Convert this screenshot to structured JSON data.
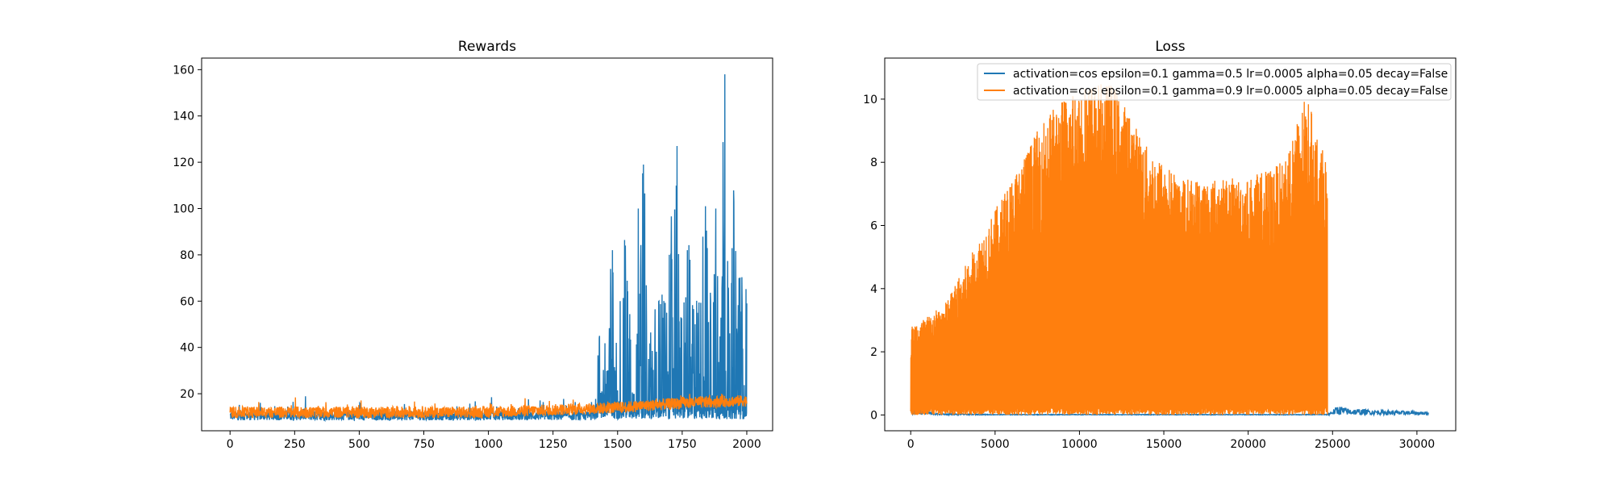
{
  "chart_data": [
    {
      "type": "line",
      "title": "Rewards",
      "xlabel": "",
      "ylabel": "",
      "xlim": [
        -110,
        2100
      ],
      "ylim": [
        4,
        165
      ],
      "xticks": [
        0,
        250,
        500,
        750,
        1000,
        1250,
        1500,
        1750,
        2000
      ],
      "yticks": [
        20,
        40,
        60,
        80,
        100,
        120,
        140,
        160
      ],
      "grid": false,
      "legend": "none",
      "series": [
        {
          "color": "#1f77b4",
          "description_points": [
            [
              0,
              10
            ],
            [
              100,
              9
            ],
            [
              250,
              10
            ],
            [
              400,
              9
            ],
            [
              500,
              11
            ],
            [
              750,
              10
            ],
            [
              1000,
              10
            ],
            [
              1250,
              11
            ],
            [
              1400,
              12
            ],
            [
              1430,
              45
            ],
            [
              1440,
              20
            ],
            [
              1480,
              82
            ],
            [
              1490,
              30
            ],
            [
              1510,
              60
            ],
            [
              1530,
              84
            ],
            [
              1560,
              20
            ],
            [
              1580,
              100
            ],
            [
              1600,
              119
            ],
            [
              1620,
              35
            ],
            [
              1660,
              60
            ],
            [
              1690,
              55
            ],
            [
              1700,
              80
            ],
            [
              1730,
              127
            ],
            [
              1740,
              40
            ],
            [
              1770,
              82
            ],
            [
              1800,
              50
            ],
            [
              1840,
              101
            ],
            [
              1860,
              60
            ],
            [
              1880,
              100
            ],
            [
              1915,
              158
            ],
            [
              1930,
              50
            ],
            [
              1950,
              103
            ],
            [
              1970,
              70
            ],
            [
              2000,
              59
            ]
          ]
        },
        {
          "color": "#ff7f0e",
          "description_points": [
            [
              0,
              12
            ],
            [
              500,
              12
            ],
            [
              1000,
              12
            ],
            [
              1250,
              13
            ],
            [
              1500,
              14
            ],
            [
              1750,
              16
            ],
            [
              2000,
              17
            ]
          ]
        }
      ]
    },
    {
      "type": "line",
      "title": "Loss",
      "xlabel": "",
      "ylabel": "",
      "xlim": [
        -1540,
        32300
      ],
      "ylim": [
        -0.5,
        11.3
      ],
      "xticks": [
        0,
        5000,
        10000,
        15000,
        20000,
        25000,
        30000
      ],
      "yticks": [
        0,
        2,
        4,
        6,
        8,
        10
      ],
      "grid": false,
      "legend": "top-right",
      "series": [
        {
          "name": "activation=cos epsilon=0.1 gamma=0.5 lr=0.0005 alpha=0.05 decay=False",
          "color": "#1f77b4",
          "total_steps": 30700,
          "envelope": [
            [
              0,
              0.3
            ],
            [
              1500,
              0.05
            ],
            [
              5000,
              0.02
            ],
            [
              24700,
              0.02
            ],
            [
              25300,
              0.3
            ],
            [
              26000,
              0.2
            ],
            [
              30700,
              0.1
            ]
          ]
        },
        {
          "name": "activation=cos epsilon=0.1 gamma=0.9 lr=0.0005 alpha=0.05 decay=False",
          "color": "#ff7f0e",
          "total_steps": 24700,
          "envelope": [
            [
              0,
              2.8
            ],
            [
              2000,
              3.5
            ],
            [
              4000,
              5.5
            ],
            [
              6000,
              7.5
            ],
            [
              8000,
              9.5
            ],
            [
              10000,
              10.5
            ],
            [
              12000,
              10.5
            ],
            [
              14000,
              8.5
            ],
            [
              16000,
              7.5
            ],
            [
              18000,
              7.5
            ],
            [
              20000,
              7.5
            ],
            [
              22000,
              8.0
            ],
            [
              23500,
              10.2
            ],
            [
              24000,
              9.0
            ],
            [
              24700,
              8.0
            ]
          ]
        }
      ]
    }
  ]
}
